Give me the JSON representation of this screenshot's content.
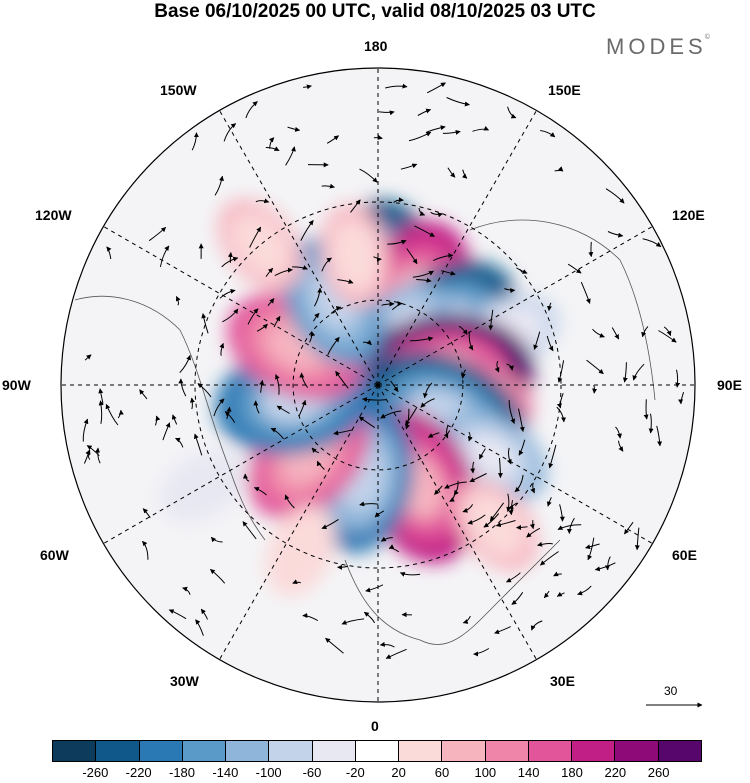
{
  "title": "Base 06/10/2025 00 UTC, valid 08/10/2025 03 UTC",
  "brand": "MODES",
  "brand_mark": "©",
  "longitude_labels": {
    "deg180": "180",
    "w150": "150W",
    "e150": "150E",
    "w120": "120W",
    "e120": "120E",
    "w90": "90W",
    "e90": "90E",
    "w60": "60W",
    "e60": "60E",
    "w30": "30W",
    "e30": "30E",
    "deg0": "0"
  },
  "reference_vector": {
    "value": "30"
  },
  "colorbar": {
    "colors": [
      "#0d3b5c",
      "#11588a",
      "#2a78b4",
      "#5a9ac8",
      "#8fb6da",
      "#c2d3ea",
      "#e8e8f3",
      "#ffffff",
      "#fbdada",
      "#f6b4bf",
      "#ef86a9",
      "#e2559b",
      "#c21f86",
      "#8d0a78",
      "#57066c"
    ],
    "ticks": [
      "-260",
      "-220",
      "-180",
      "-140",
      "-100",
      "-60",
      "-20",
      "20",
      "60",
      "100",
      "140",
      "180",
      "220",
      "260"
    ]
  },
  "field_cells": [
    {
      "lon": 178,
      "lat": 56,
      "value": -240
    },
    {
      "lon": 158,
      "lat": 57,
      "value": 200
    },
    {
      "lon": 130,
      "lat": 60,
      "value": -220
    },
    {
      "lon": 150,
      "lat": 72,
      "value": -120
    },
    {
      "lon": 112,
      "lat": 42,
      "value": -60
    },
    {
      "lon": 97,
      "lat": 67,
      "value": 260
    },
    {
      "lon": 80,
      "lat": 56,
      "value": 100
    },
    {
      "lon": 64,
      "lat": 64,
      "value": -240
    },
    {
      "lon": 58,
      "lat": 44,
      "value": -100
    },
    {
      "lon": 22,
      "lat": 52,
      "value": 200
    },
    {
      "lon": -10,
      "lat": 57,
      "value": -180
    },
    {
      "lon": -44,
      "lat": 55,
      "value": 160
    },
    {
      "lon": -80,
      "lat": 60,
      "value": -200
    },
    {
      "lon": -115,
      "lat": 58,
      "value": 160
    },
    {
      "lon": -152,
      "lat": 57,
      "value": -140
    },
    {
      "lon": -170,
      "lat": 45,
      "value": 60
    },
    {
      "lon": 40,
      "lat": 30,
      "value": 60
    },
    {
      "lon": -25,
      "lat": 30,
      "value": 40
    },
    {
      "lon": -60,
      "lat": 25,
      "value": -40
    },
    {
      "lon": -140,
      "lat": 30,
      "value": 60
    }
  ]
}
